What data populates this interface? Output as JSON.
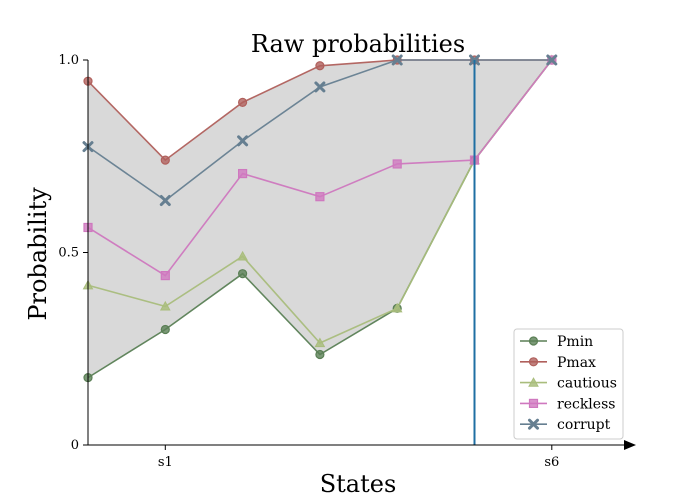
{
  "chart_data": {
    "type": "line",
    "title": "Raw probabilities",
    "xlabel": "States",
    "ylabel": "Probability",
    "x": [
      0,
      1,
      2,
      3,
      4,
      5,
      6
    ],
    "x_tick_labels": [
      {
        "x": 1,
        "label": "s1"
      },
      {
        "x": 6,
        "label": "s6"
      }
    ],
    "y_tick_labels": [
      {
        "y": 0,
        "label": "0"
      },
      {
        "y": 0.5,
        "label": "0.5"
      },
      {
        "y": 1.0,
        "label": "1.0"
      }
    ],
    "xlim": [
      0,
      7
    ],
    "ylim": [
      0,
      1.0
    ],
    "vertical_line_x": 5,
    "shaded_region": "between Pmin and Pmax",
    "legend_position": "lower-right",
    "grid": false,
    "series": [
      {
        "name": "Pmin",
        "color": "#5a7f55",
        "marker": "circle",
        "values": [
          0.175,
          0.3,
          0.445,
          0.235,
          0.355,
          0.74,
          1.0
        ]
      },
      {
        "name": "Pmax",
        "color": "#b0605c",
        "marker": "circle",
        "values": [
          0.945,
          0.74,
          0.89,
          0.985,
          1.0,
          1.0,
          1.0
        ]
      },
      {
        "name": "cautious",
        "color": "#a9bd7c",
        "marker": "triangle",
        "values": [
          0.415,
          0.36,
          0.49,
          0.265,
          0.355,
          0.74,
          1.0
        ]
      },
      {
        "name": "reckless",
        "color": "#cf78bf",
        "marker": "square",
        "values": [
          0.565,
          0.44,
          0.705,
          0.645,
          0.73,
          0.74,
          1.0
        ]
      },
      {
        "name": "corrupt",
        "color": "#667f91",
        "marker": "x",
        "values": [
          0.775,
          0.635,
          0.79,
          0.93,
          1.0,
          1.0,
          1.0
        ]
      }
    ]
  }
}
